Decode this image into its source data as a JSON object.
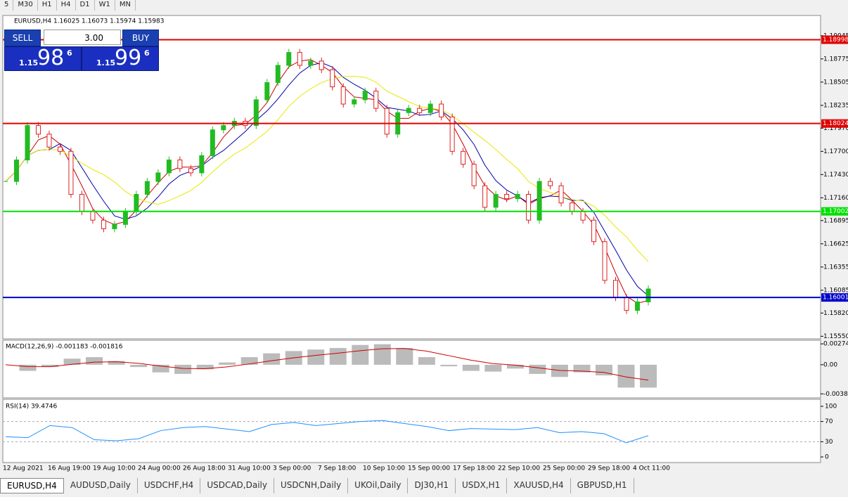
{
  "toolbar": [
    "5",
    "M30",
    "H1",
    "H4",
    "D1",
    "W1",
    "MN"
  ],
  "trade_panel": {
    "sell": "SELL",
    "buy": "BUY",
    "lot": "3.00",
    "bid": {
      "prefix": "1.15",
      "big": "98",
      "sup": "6"
    },
    "ask": {
      "prefix": "1.15",
      "big": "99",
      "sup": "6"
    }
  },
  "chart_data": {
    "type": "candlestick",
    "header": "EURUSD,H4 1.16025 1.16073 1.15974 1.15983",
    "values": [
      1.1735,
      1.176,
      1.18,
      1.179,
      1.1775,
      1.177,
      1.172,
      1.17,
      1.169,
      1.168,
      1.1685,
      1.17,
      1.172,
      1.1735,
      1.1745,
      1.176,
      1.175,
      1.1745,
      1.1765,
      1.1795,
      1.18,
      1.1805,
      1.18,
      1.183,
      1.185,
      1.187,
      1.1885,
      1.187,
      1.1875,
      1.1865,
      1.1845,
      1.1825,
      1.183,
      1.184,
      1.182,
      1.179,
      1.1815,
      1.182,
      1.1815,
      1.1825,
      1.181,
      1.177,
      1.1755,
      1.173,
      1.1705,
      1.172,
      1.1715,
      1.172,
      1.169,
      1.1735,
      1.173,
      1.171,
      1.17,
      1.169,
      1.1665,
      1.162,
      1.16,
      1.1585,
      1.1595,
      1.161
    ],
    "up_color": "#22bb22",
    "down_color": "#dd2222",
    "ylim": [
      1.1552,
      1.1928
    ],
    "yticks": [
      1.19045,
      1.18775,
      1.18505,
      1.18235,
      {
        "value": 1.1797,
        "label": "1.17970"
      },
      {
        "value": 1.177,
        "label": "1.17700"
      },
      {
        "value": 1.1743,
        "label": "1.17430"
      },
      {
        "value": 1.1716,
        "label": "1.17160"
      },
      1.16895,
      1.16625,
      1.16355,
      1.16085,
      {
        "value": 1.1582,
        "label": "1.15820"
      },
      {
        "value": 1.1555,
        "label": "1.15550"
      }
    ],
    "levels": [
      {
        "value": 1.18998,
        "color": "#e00000"
      },
      {
        "value": 1.18024,
        "color": "#e00000"
      },
      {
        "value": 1.17002,
        "color": "#00e000"
      },
      {
        "value": 1.16001,
        "color": "#0000cc"
      }
    ],
    "x_labels": [
      "12 Aug 2021",
      "16 Aug 19:00",
      "19 Aug 10:00",
      "24 Aug 00:00",
      "26 Aug 18:00",
      "31 Aug 10:00",
      "3 Sep 00:00",
      "7 Sep 18:00",
      "10 Sep 10:00",
      "15 Sep 00:00",
      "17 Sep 18:00",
      "22 Sep 10:00",
      "25 Sep 00:00",
      "29 Sep 18:00",
      "4 Oct 11:00"
    ]
  },
  "macd": {
    "label": "MACD(12,26,9) -0.001183 -0.001816",
    "color": "#bbbbbb",
    "signal_color": "#cc0000",
    "values": [
      0.0,
      -0.0008,
      -0.0003,
      0.0008,
      0.001,
      0.0005,
      -0.0003,
      -0.001,
      -0.0012,
      -0.0006,
      0.0003,
      0.001,
      0.0015,
      0.0018,
      0.002,
      0.0022,
      0.0026,
      0.0027,
      0.0022,
      0.001,
      -0.0002,
      -0.0008,
      -0.0009,
      -0.0005,
      -0.0012,
      -0.0016,
      -0.001,
      -0.0014,
      -0.003,
      -0.003
    ],
    "ylim": [
      -0.00435,
      0.00322
    ],
    "yticks": [
      0.002744,
      {
        "value": 0,
        "label": "0.00"
      },
      -0.00382
    ]
  },
  "rsi": {
    "label": "RSI(14) 39.4746",
    "color": "#1e90ff",
    "values": [
      40,
      38,
      62,
      58,
      34,
      32,
      36,
      52,
      58,
      60,
      55,
      50,
      64,
      68,
      62,
      66,
      70,
      72,
      66,
      60,
      52,
      56,
      55,
      54,
      58,
      48,
      50,
      46,
      28,
      42
    ],
    "ylim": [
      0,
      100
    ],
    "yticks": [
      100,
      70,
      30,
      0
    ],
    "levels": [
      70,
      30
    ]
  },
  "tabs": [
    "EURUSD,H4",
    "AUDUSD,Daily",
    "USDCHF,H4",
    "USDCAD,Daily",
    "USDCNH,Daily",
    "UKOil,Daily",
    "DJ30,H1",
    "USDX,H1",
    "XAUUSD,H4",
    "GBPUSD,H1"
  ]
}
